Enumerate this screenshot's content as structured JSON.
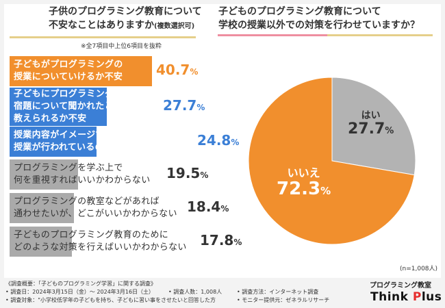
{
  "colors": {
    "orange": "#f18f2d",
    "blue": "#3b7fd6",
    "gray": "#aaaaaa",
    "pie_gray": "#b3b3b3",
    "pie_orange": "#f18f2d"
  },
  "left": {
    "title_line1": "子供のプログラミング教育について",
    "title_line2": "不安なことはありますか",
    "title_suffix": "(複数選択可)",
    "note": "※全7項目中上位6項目を抜粋"
  },
  "right": {
    "title_line1": "子どものプログラミング教育について",
    "title_line2": "学校の授業以外での対策を行わせていますか？",
    "n_note": "(n=1,008人)"
  },
  "chart_data": [
    {
      "type": "bar",
      "title": "子供のプログラミング教育について不安なことはありますか(複数選択可)",
      "categories": [
        "子どもがプログラミングの授業についていけるか不安",
        "子どもにプログラミングの宿題について聞かれたときに教えられるか不安",
        "授業内容がイメージできず、どんな授業が行われているのかわからない",
        "プログラミングを学ぶ上で何を重視すればいいかわからない",
        "プログラミングの教室などがあれば通わせたいが、どこがいいかわからない",
        "子どものプログラミング教育のためにどのような対策を行えばいいかわからない"
      ],
      "label_lines": [
        [
          "子どもがプログラミングの",
          "授業についていけるか不安"
        ],
        [
          "子どもにプログラミングの",
          "宿題について聞かれたときに",
          "教えられるか不安"
        ],
        [
          "授業内容がイメージできず、どんな",
          "授業が行われているのかわからない"
        ],
        [
          "プログラミングを学ぶ上で",
          "何を重視すればいいかわからない"
        ],
        [
          "プログラミングの教室などがあれば",
          "通わせたいが、どこがいいかわからない"
        ],
        [
          "子どものプログラミング教育のために",
          "どのような対策を行えばいいかわからない"
        ]
      ],
      "values": [
        40.7,
        27.7,
        24.8,
        19.5,
        18.4,
        17.8
      ],
      "display_values": [
        "40.7",
        "27.7",
        "24.8",
        "19.5",
        "18.4",
        "17.8"
      ],
      "unit": "%"
    },
    {
      "type": "pie",
      "title": "子どものプログラミング教育について学校の授業以外での対策を行わせていますか？",
      "labels": [
        "はい",
        "いいえ"
      ],
      "values": [
        27.7,
        72.3
      ],
      "display_values": [
        "27.7",
        "72.3"
      ],
      "unit": "%",
      "n": "1,008人"
    }
  ],
  "footer": {
    "line1": "《調査概要：「子どものプログラミング学習」に関する調査》",
    "survey_date": "• 調査日：2024年3月15日（金）～ 2024年3月16日（土）",
    "respondents": "• 調査人数：1,008人",
    "method": "• 調査方法：インターネット調査",
    "target": "• 調査対象：\"小学校低学年の子どもを持ち、子どもに習い事をさせたいと回答した方",
    "provider": "• モニター提供元：ゼネラルリサーチ"
  },
  "brand": {
    "top": "プログラミング教室",
    "name_a": "Think ",
    "name_p": "P",
    "name_b": "lus"
  }
}
